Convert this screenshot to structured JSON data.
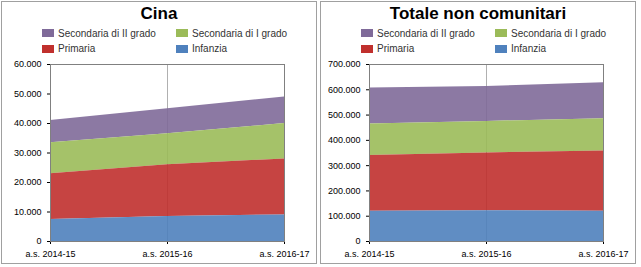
{
  "chart_data": [
    {
      "type": "area",
      "title": "Cina",
      "stacked": true,
      "legend": "top",
      "grid": true,
      "categories": [
        "a.s. 2014-15",
        "a.s. 2015-16",
        "a.s. 2016-17"
      ],
      "series": [
        {
          "name": "Secondaria di II grado",
          "color": "#7f6a99",
          "values": [
            7500,
            8500,
            9000
          ]
        },
        {
          "name": "Secondaria di I grado",
          "color": "#9bbb59",
          "values": [
            10500,
            10500,
            12000
          ]
        },
        {
          "name": "Primaria",
          "color": "#c0302d",
          "values": [
            15500,
            17500,
            19000
          ]
        },
        {
          "name": "Infanzia",
          "color": "#4f81bd",
          "values": [
            7500,
            8500,
            9000
          ]
        }
      ],
      "ylim": [
        0,
        60000
      ],
      "yticks": [
        0,
        {
          "value": 10000,
          "label": "10.000"
        },
        {
          "value": 20000,
          "label": "20.000"
        },
        {
          "value": 30000,
          "label": "30.000"
        },
        {
          "value": 40000,
          "label": "40.000"
        },
        {
          "value": 50000,
          "label": "50.000"
        },
        {
          "value": 60000,
          "label": "60.000"
        }
      ]
    },
    {
      "type": "area",
      "title": "Totale non comunitari",
      "stacked": true,
      "legend": "top",
      "grid": true,
      "categories": [
        "a.s. 2014-15",
        "a.s. 2015-16",
        "a.s. 2016-17"
      ],
      "series": [
        {
          "name": "Secondaria di II grado",
          "color": "#7f6a99",
          "values": [
            142000,
            138000,
            143000
          ]
        },
        {
          "name": "Secondaria di I grado",
          "color": "#9bbb59",
          "values": [
            125000,
            125000,
            127000
          ]
        },
        {
          "name": "Primaria",
          "color": "#c0302d",
          "values": [
            220000,
            228000,
            238000
          ]
        },
        {
          "name": "Infanzia",
          "color": "#4f81bd",
          "values": [
            120000,
            122000,
            120000
          ]
        }
      ],
      "ylim": [
        0,
        700000
      ],
      "yticks": [
        0,
        {
          "value": 100000,
          "label": "100.000"
        },
        {
          "value": 200000,
          "label": "200.000"
        },
        {
          "value": 300000,
          "label": "300.000"
        },
        {
          "value": 400000,
          "label": "400.000"
        },
        {
          "value": 500000,
          "label": "500.000"
        },
        {
          "value": 600000,
          "label": "600.000"
        },
        {
          "value": 700000,
          "label": "700.000"
        }
      ]
    }
  ]
}
